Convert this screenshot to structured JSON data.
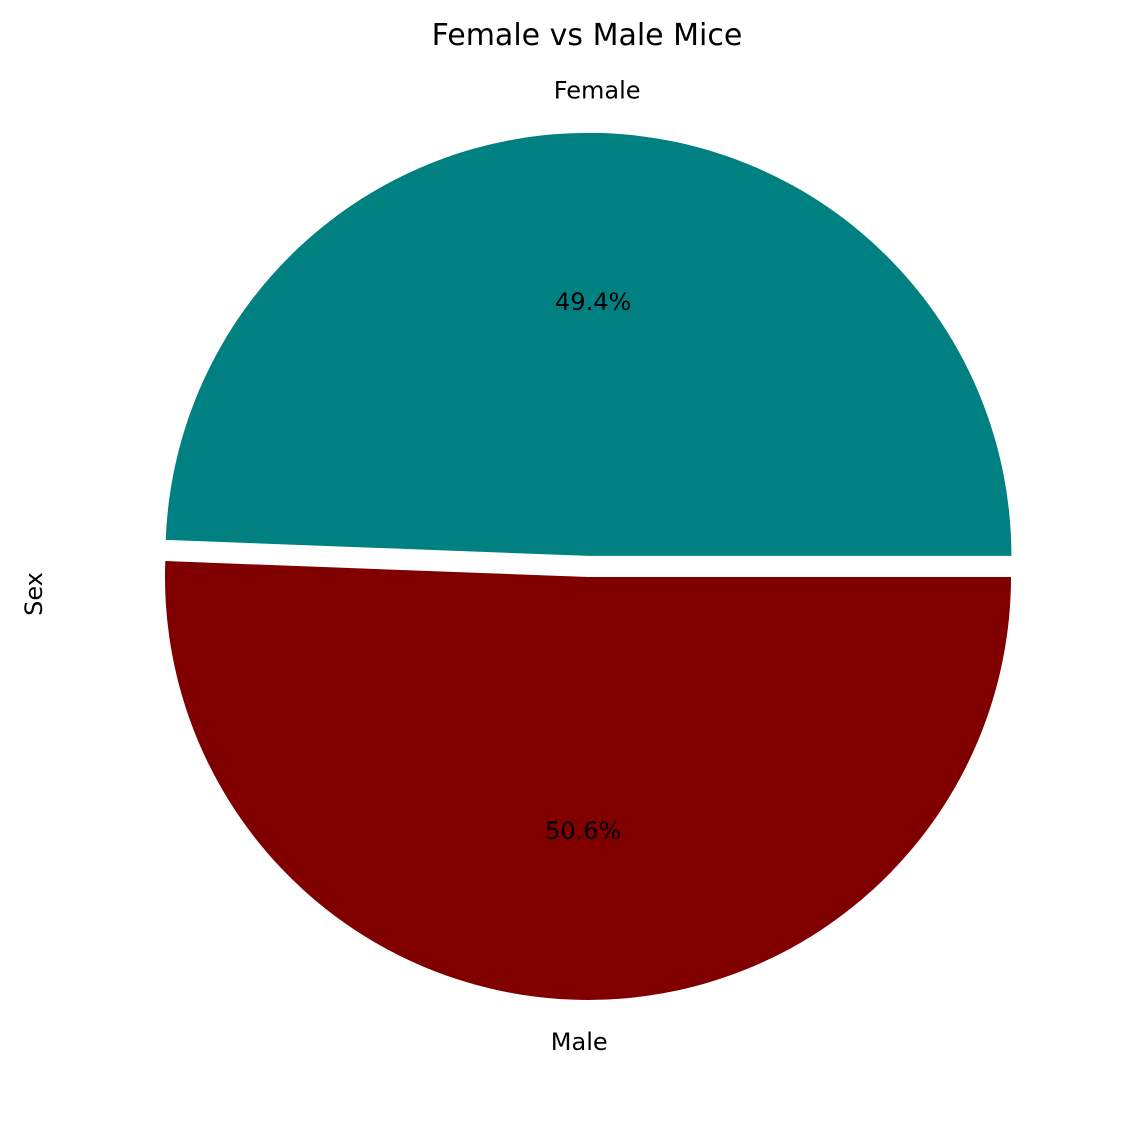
{
  "chart_data": {
    "type": "pie",
    "title": "Female vs Male Mice",
    "ylabel": "Sex",
    "categories": [
      "Female",
      "Male"
    ],
    "values": [
      49.4,
      50.6
    ],
    "percent_labels": [
      "49.4%",
      "50.6%"
    ],
    "colors": [
      "#008080",
      "#800000"
    ],
    "explode": [
      0.05,
      0
    ],
    "legend": "none"
  }
}
